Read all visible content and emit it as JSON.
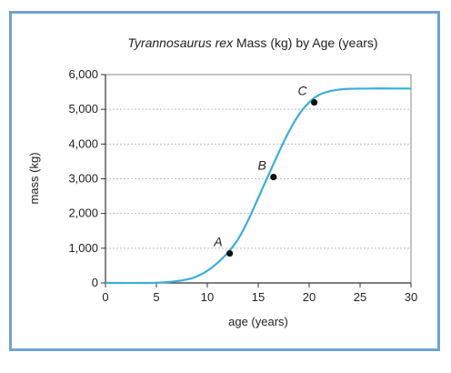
{
  "chart_data": {
    "type": "line",
    "title_italic": "Tyrannosaurus rex",
    "title_rest": " Mass (kg) by Age (years)",
    "xlabel": "age (years)",
    "ylabel": "mass (kg)",
    "xlim": [
      0,
      30
    ],
    "ylim": [
      0,
      6000
    ],
    "x_ticks": [
      0,
      5,
      10,
      15,
      20,
      25,
      30
    ],
    "y_ticks": [
      0,
      1000,
      2000,
      3000,
      4000,
      5000,
      6000
    ],
    "x_tick_labels": [
      "0",
      "5",
      "10",
      "15",
      "20",
      "25",
      "30"
    ],
    "y_tick_labels": [
      "0",
      "1,000",
      "2,000",
      "3,000",
      "4,000",
      "5,000",
      "6,000"
    ],
    "grid": "horizontal dashed",
    "series": [
      {
        "x": [
          0,
          4,
          6,
          8,
          9,
          10,
          11,
          12,
          13,
          14,
          15,
          16,
          17,
          18,
          19,
          20,
          21,
          22,
          23,
          24,
          26,
          28,
          30
        ],
        "y": [
          0,
          0,
          20,
          100,
          190,
          350,
          580,
          870,
          1250,
          1800,
          2450,
          3100,
          3750,
          4350,
          4850,
          5200,
          5420,
          5520,
          5570,
          5590,
          5600,
          5600,
          5600
        ]
      }
    ],
    "points": [
      {
        "label": "A",
        "x": 12.2,
        "y": 850
      },
      {
        "label": "B",
        "x": 16.5,
        "y": 3050
      },
      {
        "label": "C",
        "x": 20.5,
        "y": 5200
      }
    ],
    "colors": {
      "line": "#3aaed8",
      "points": "#111111",
      "frame": "#6fa3d6"
    }
  }
}
